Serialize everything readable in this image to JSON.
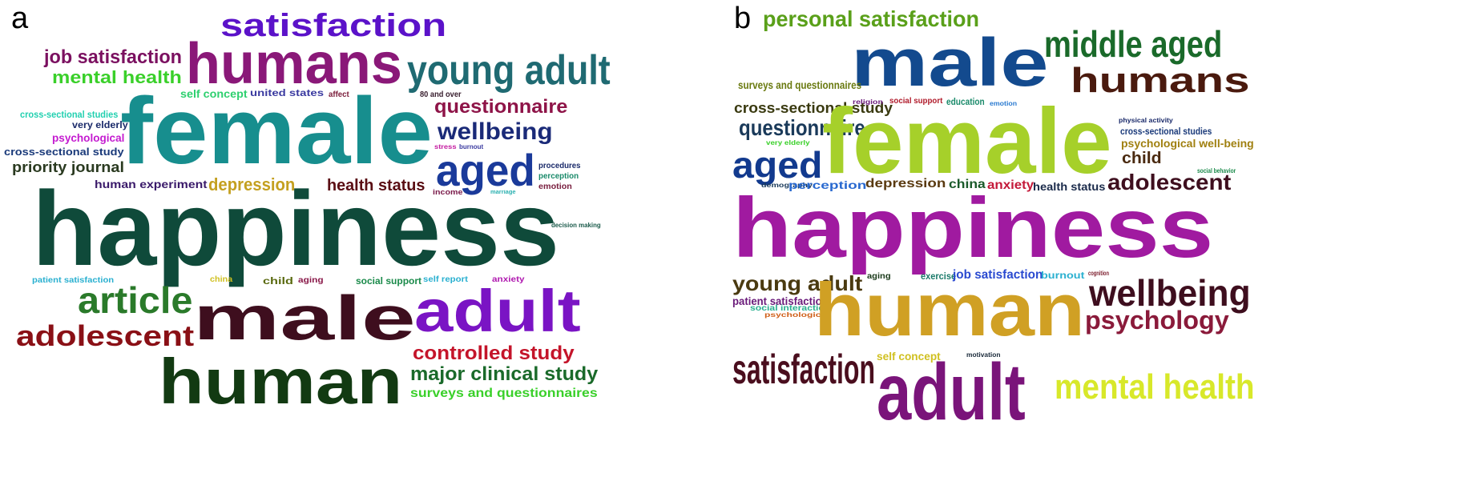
{
  "panels": [
    {
      "label": "a",
      "words": [
        {
          "text": "satisfaction",
          "color": "#5b12c9"
        },
        {
          "text": "job satisfaction",
          "color": "#7b1060"
        },
        {
          "text": "humans",
          "color": "#8a1878"
        },
        {
          "text": "mental health",
          "color": "#3ad02a"
        },
        {
          "text": "young adult",
          "color": "#1f6a72"
        },
        {
          "text": "self concept",
          "color": "#2ed06f"
        },
        {
          "text": "united states",
          "color": "#3a3aa0"
        },
        {
          "text": "affect",
          "color": "#7a1c3a"
        },
        {
          "text": "80 and over",
          "color": "#3a2030"
        },
        {
          "text": "questionnaire",
          "color": "#8e1448"
        },
        {
          "text": "cross-sectional studies",
          "color": "#22d0b0"
        },
        {
          "text": "very elderly",
          "color": "#1a2a6a"
        },
        {
          "text": "psychological",
          "color": "#c41bd0"
        },
        {
          "text": "cross-sectional study",
          "color": "#1a3a7a"
        },
        {
          "text": "priority journal",
          "color": "#2a3a20"
        },
        {
          "text": "female",
          "color": "#178e8e"
        },
        {
          "text": "wellbeing",
          "color": "#1a2a78"
        },
        {
          "text": "stress",
          "color": "#c41ba0"
        },
        {
          "text": "burnout",
          "color": "#3a3aa0"
        },
        {
          "text": "aged",
          "color": "#1a3a9a"
        },
        {
          "text": "procedures",
          "color": "#1a2a6a"
        },
        {
          "text": "perception",
          "color": "#1a8a6a"
        },
        {
          "text": "emotion",
          "color": "#7a2040"
        },
        {
          "text": "human experiment",
          "color": "#3a1a6a"
        },
        {
          "text": "depression",
          "color": "#c4a020"
        },
        {
          "text": "health status",
          "color": "#5a0e14"
        },
        {
          "text": "income",
          "color": "#7a1a4a"
        },
        {
          "text": "marriage",
          "color": "#2ab0b0"
        },
        {
          "text": "happiness",
          "color": "#0f4a3a"
        },
        {
          "text": "decision making",
          "color": "#1a5a4a"
        },
        {
          "text": "patient satisfaction",
          "color": "#2ab0d0"
        },
        {
          "text": "china",
          "color": "#d0c020"
        },
        {
          "text": "child",
          "color": "#5a6a10"
        },
        {
          "text": "aging",
          "color": "#8a1a4a"
        },
        {
          "text": "social support",
          "color": "#1a8a4a"
        },
        {
          "text": "self report",
          "color": "#2ab0d0"
        },
        {
          "text": "anxiety",
          "color": "#b01ab0"
        },
        {
          "text": "article",
          "color": "#2a7a2a"
        },
        {
          "text": "male",
          "color": "#3e0e1e"
        },
        {
          "text": "adult",
          "color": "#7a14c4"
        },
        {
          "text": "adolescent",
          "color": "#8a1016"
        },
        {
          "text": "controlled study",
          "color": "#c4142a"
        },
        {
          "text": "major clinical study",
          "color": "#1a6a2a"
        },
        {
          "text": "human",
          "color": "#123a12"
        },
        {
          "text": "surveys and questionnaires",
          "color": "#3ad02a"
        }
      ]
    },
    {
      "label": "b",
      "words": [
        {
          "text": "personal satisfaction",
          "color": "#5aa01a"
        },
        {
          "text": "male",
          "color": "#134a8e"
        },
        {
          "text": "middle aged",
          "color": "#1a6a2a"
        },
        {
          "text": "surveys and questionnaires",
          "color": "#6a7a10"
        },
        {
          "text": "humans",
          "color": "#4a1a0e"
        },
        {
          "text": "cross-sectional study",
          "color": "#3a3a10"
        },
        {
          "text": "religion",
          "color": "#6a1a7a"
        },
        {
          "text": "social support",
          "color": "#b01a2a"
        },
        {
          "text": "education",
          "color": "#1a8a6a"
        },
        {
          "text": "emotion",
          "color": "#2a7ad0"
        },
        {
          "text": "physical activity",
          "color": "#1a2a6a"
        },
        {
          "text": "questionnaire",
          "color": "#1a3a5a"
        },
        {
          "text": "cross-sectional studies",
          "color": "#1a3a7a"
        },
        {
          "text": "psychological well-being",
          "color": "#a08010"
        },
        {
          "text": "female",
          "color": "#a6d02a"
        },
        {
          "text": "child",
          "color": "#4a2a10"
        },
        {
          "text": "very elderly",
          "color": "#3ad02a"
        },
        {
          "text": "aged",
          "color": "#123a8e"
        },
        {
          "text": "social behavior",
          "color": "#1a8a4a"
        },
        {
          "text": "demography",
          "color": "#1a3a5a"
        },
        {
          "text": "perception",
          "color": "#2a6ad0"
        },
        {
          "text": "depression",
          "color": "#5a3a10"
        },
        {
          "text": "china",
          "color": "#1a5a2a"
        },
        {
          "text": "anxiety",
          "color": "#c41a3a"
        },
        {
          "text": "health status",
          "color": "#1a2a4a"
        },
        {
          "text": "adolescent",
          "color": "#3e0e1e"
        },
        {
          "text": "happiness",
          "color": "#a01aa0"
        },
        {
          "text": "young adult",
          "color": "#4a3a10"
        },
        {
          "text": "aging",
          "color": "#1a3a1a"
        },
        {
          "text": "exercise",
          "color": "#1a7a6a"
        },
        {
          "text": "job satisfaction",
          "color": "#2a4ad0"
        },
        {
          "text": "burnout",
          "color": "#2ab0d0"
        },
        {
          "text": "cognition",
          "color": "#7a1a2a"
        },
        {
          "text": "wellbeing",
          "color": "#3e0e1e"
        },
        {
          "text": "patient satisfaction",
          "color": "#6a1a7a"
        },
        {
          "text": "social interaction",
          "color": "#2ab090"
        },
        {
          "text": "psychological",
          "color": "#d0601a"
        },
        {
          "text": "human",
          "color": "#d0a024"
        },
        {
          "text": "psychology",
          "color": "#8a1a3a"
        },
        {
          "text": "self concept",
          "color": "#d0c020"
        },
        {
          "text": "motivation",
          "color": "#1a2a3a"
        },
        {
          "text": "satisfaction",
          "color": "#4a0e1e"
        },
        {
          "text": "adult",
          "color": "#7a147a"
        },
        {
          "text": "mental health",
          "color": "#d8e82a"
        }
      ]
    }
  ]
}
